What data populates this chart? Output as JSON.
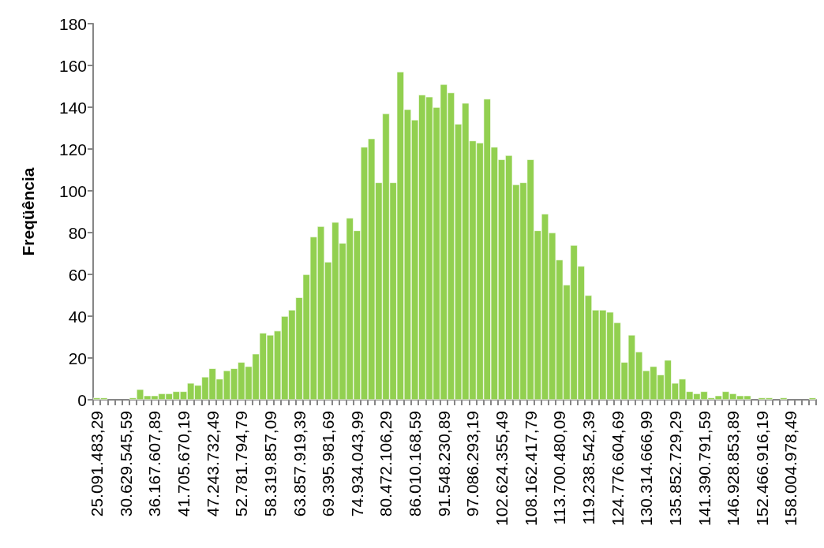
{
  "chart_data": {
    "type": "bar",
    "ylabel": "Freqüência",
    "color": "#92d050",
    "grid": false,
    "categories": [
      "25.091.483,29",
      null,
      null,
      null,
      "30.629.545,59",
      null,
      null,
      null,
      "36.167.607,89",
      null,
      null,
      null,
      "41.705.670,19",
      null,
      null,
      null,
      "47.243.732,49",
      null,
      null,
      null,
      "52.781.794,79",
      null,
      null,
      null,
      "58.319.857,09",
      null,
      null,
      null,
      "63.857.919,39",
      null,
      null,
      null,
      "69.395.981,69",
      null,
      null,
      null,
      "74.934.043,99",
      null,
      null,
      null,
      "80.472.106,29",
      null,
      null,
      null,
      "86.010.168,59",
      null,
      null,
      null,
      "91.548.230,89",
      null,
      null,
      null,
      "97.086.293,19",
      null,
      null,
      null,
      "102.624.355,49",
      null,
      null,
      null,
      "108.162.417,79",
      null,
      null,
      null,
      "113.700.480,09",
      null,
      null,
      null,
      "119.238.542,39",
      null,
      null,
      null,
      "124.776.604,69",
      null,
      null,
      null,
      "130.314.666,99",
      null,
      null,
      null,
      "135.852.729,29",
      null,
      null,
      null,
      "141.390.791,59",
      null,
      null,
      null,
      "146.928.853,89",
      null,
      null,
      null,
      "152.466.916,19",
      null,
      null,
      null,
      "158.004.978,49",
      null,
      null,
      null
    ],
    "values": [
      1,
      1,
      0,
      0,
      0,
      1,
      5,
      2,
      2,
      3,
      3,
      4,
      4,
      8,
      7,
      11,
      15,
      10,
      14,
      15,
      18,
      16,
      22,
      32,
      31,
      33,
      40,
      43,
      49,
      60,
      78,
      83,
      66,
      85,
      75,
      87,
      81,
      121,
      125,
      104,
      137,
      104,
      157,
      139,
      134,
      146,
      145,
      140,
      151,
      147,
      132,
      142,
      124,
      123,
      144,
      121,
      115,
      117,
      103,
      104,
      115,
      81,
      89,
      80,
      67,
      55,
      74,
      64,
      50,
      43,
      43,
      42,
      37,
      18,
      31,
      23,
      14,
      16,
      12,
      19,
      8,
      10,
      4,
      3,
      4,
      1,
      2,
      4,
      3,
      2,
      2,
      0,
      1,
      1,
      0,
      1,
      0,
      0,
      0,
      1
    ],
    "ylim": [
      0,
      180
    ],
    "yticks": [
      0,
      20,
      40,
      60,
      80,
      100,
      120,
      140,
      160,
      180
    ]
  }
}
